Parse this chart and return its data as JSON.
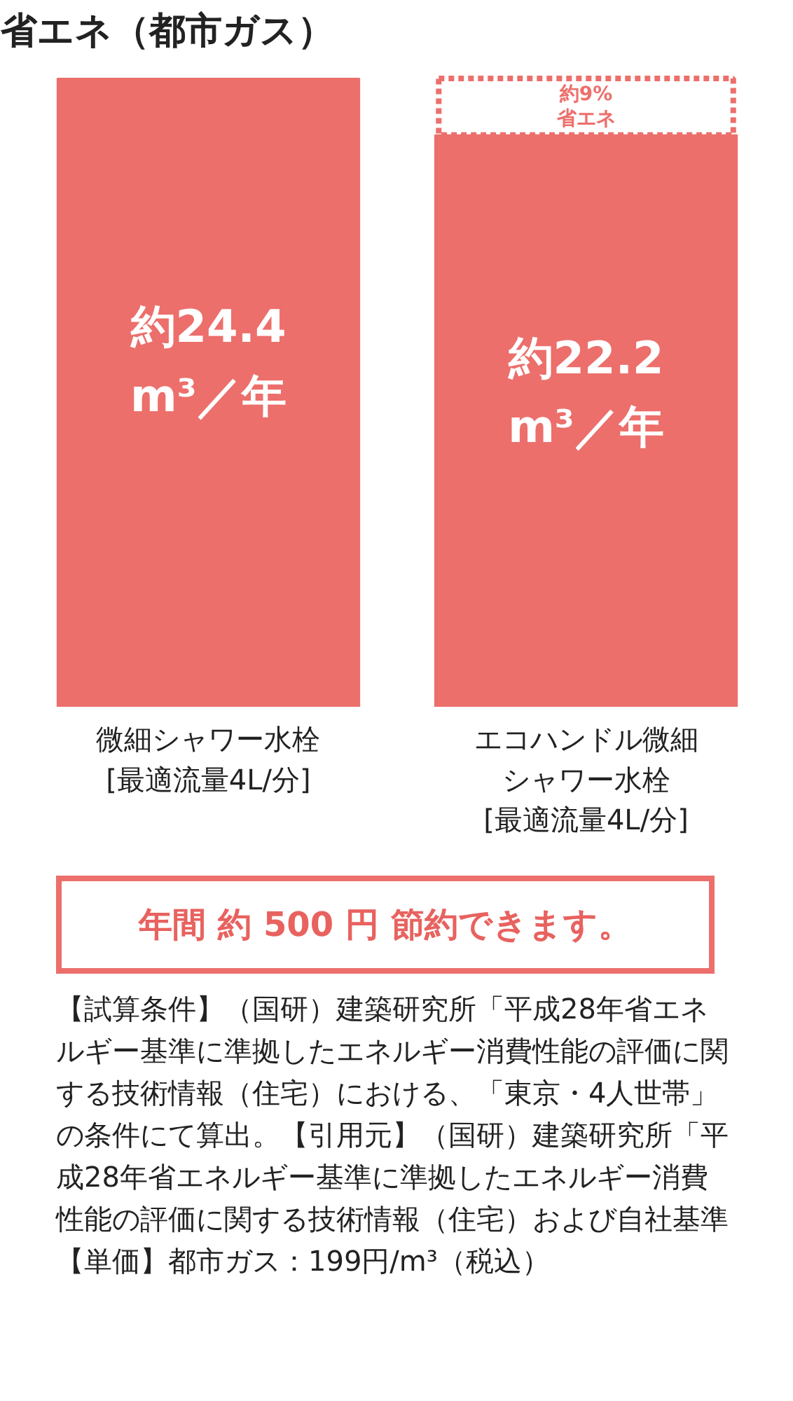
{
  "chart_data": {
    "type": "bar",
    "title": "省エネ（都市ガス）",
    "categories": [
      "微細シャワー水栓[最適流量4L/分]",
      "エコハンドル微細シャワー水栓[最適流量4L/分]"
    ],
    "values": [
      24.4,
      22.2
    ],
    "value_labels": [
      "約24.4\nm³／年",
      "約22.2\nm³／年"
    ],
    "color": "#ec6f6b",
    "grid": false,
    "annotations": [
      "約9%\n省エネ",
      "年間 約 500 円 節約できます。",
      "【試算条件】（国研）建築研究所「平成28年省エネルギー基準に準拠したエネルギー消費性能の評価に関する技術情報（住宅）における、「東京・4人世帯」の条件にて算出。【引用元】（国研）建築研究所「平成28年省エネルギー基準に準拠したエネルギー消費性能の評価に関する技術情報（住宅）および自社基準【単価】都市ガス：199円/m³（税込）"
    ]
  }
}
